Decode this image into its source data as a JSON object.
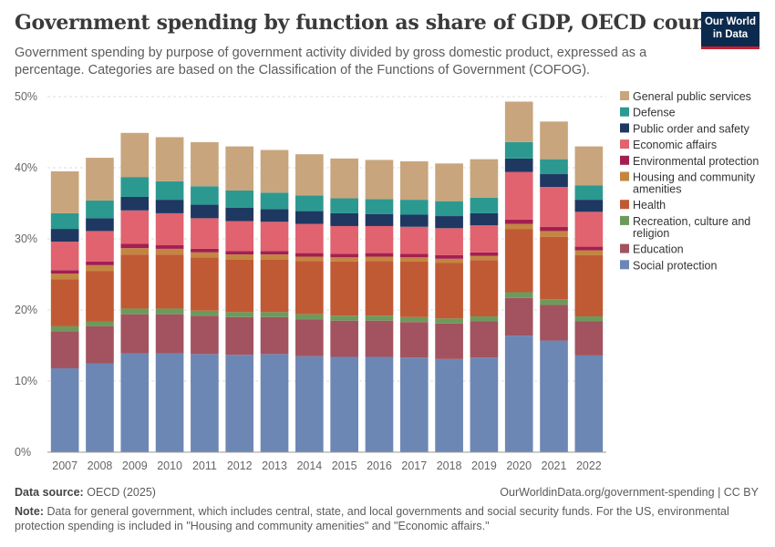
{
  "header": {
    "title": "Government spending by function as share of GDP, OECD countries",
    "subtitle": "Government spending by purpose of government activity divided by gross domestic product, expressed as a percentage. Categories are based on the Classification of the Functions of Government (COFOG).",
    "logo_line1": "Our World",
    "logo_line2": "in Data"
  },
  "footer": {
    "source_label": "Data source:",
    "source_value": "OECD (2025)",
    "license": "OurWorldinData.org/government-spending | CC BY",
    "note_label": "Note:",
    "note_text": "Data for general government, which includes central, state, and local governments and social security funds. For the US, environmental protection spending is included in \"Housing and community amenities\" and \"Economic affairs.\""
  },
  "colors": {
    "grid": "#dddddd",
    "axis": "#999999"
  },
  "chart_data": {
    "type": "bar",
    "stacked": true,
    "categories": [
      "2007",
      "2008",
      "2009",
      "2010",
      "2011",
      "2012",
      "2013",
      "2014",
      "2015",
      "2016",
      "2017",
      "2018",
      "2019",
      "2020",
      "2021",
      "2022"
    ],
    "ylim": [
      0,
      50
    ],
    "yticks": [
      0,
      10,
      20,
      30,
      40,
      50
    ],
    "ytick_labels": [
      "0%",
      "10%",
      "20%",
      "30%",
      "40%",
      "50%"
    ],
    "legend_position": "right",
    "series": [
      {
        "name": "Social protection",
        "color": "#6d87b4",
        "values": [
          11.8,
          12.5,
          13.9,
          13.9,
          13.8,
          13.7,
          13.8,
          13.5,
          13.4,
          13.4,
          13.3,
          13.1,
          13.3,
          16.4,
          15.7,
          13.6
        ]
      },
      {
        "name": "Education",
        "color": "#a2535f",
        "values": [
          5.2,
          5.2,
          5.5,
          5.5,
          5.4,
          5.3,
          5.2,
          5.2,
          5.1,
          5.1,
          5.0,
          5.0,
          5.1,
          5.3,
          5.0,
          4.8
        ]
      },
      {
        "name": "Recreation, culture and religion",
        "color": "#6d9a5b",
        "values": [
          0.7,
          0.7,
          0.8,
          0.8,
          0.7,
          0.7,
          0.7,
          0.7,
          0.7,
          0.7,
          0.7,
          0.7,
          0.7,
          0.8,
          0.8,
          0.7
        ]
      },
      {
        "name": "Health",
        "color": "#c05a35",
        "values": [
          6.6,
          7.1,
          7.6,
          7.6,
          7.5,
          7.4,
          7.4,
          7.5,
          7.6,
          7.7,
          7.8,
          7.8,
          7.9,
          8.9,
          8.8,
          8.6
        ]
      },
      {
        "name": "Housing and community amenities",
        "color": "#c38641",
        "values": [
          0.8,
          0.8,
          0.9,
          0.8,
          0.7,
          0.7,
          0.7,
          0.6,
          0.6,
          0.6,
          0.6,
          0.6,
          0.6,
          0.7,
          0.8,
          0.7
        ]
      },
      {
        "name": "Environmental protection",
        "color": "#a31f52",
        "values": [
          0.5,
          0.5,
          0.6,
          0.5,
          0.5,
          0.5,
          0.5,
          0.5,
          0.5,
          0.5,
          0.5,
          0.5,
          0.5,
          0.6,
          0.6,
          0.5
        ]
      },
      {
        "name": "Economic affairs",
        "color": "#e0636f",
        "values": [
          4.0,
          4.3,
          4.7,
          4.5,
          4.3,
          4.2,
          4.1,
          4.1,
          3.9,
          3.8,
          3.8,
          3.8,
          3.8,
          6.7,
          5.6,
          4.9
        ]
      },
      {
        "name": "Public order and safety",
        "color": "#1e3862",
        "values": [
          1.8,
          1.8,
          1.9,
          1.9,
          1.9,
          1.9,
          1.8,
          1.8,
          1.8,
          1.7,
          1.7,
          1.7,
          1.7,
          1.9,
          1.8,
          1.7
        ]
      },
      {
        "name": "Defense",
        "color": "#2c9990",
        "values": [
          2.2,
          2.5,
          2.8,
          2.6,
          2.6,
          2.4,
          2.3,
          2.2,
          2.1,
          2.1,
          2.1,
          2.1,
          2.2,
          2.3,
          2.1,
          2.0
        ]
      },
      {
        "name": "General public services",
        "color": "#c8a57d",
        "values": [
          5.9,
          6.0,
          6.2,
          6.2,
          6.2,
          6.2,
          6.0,
          5.8,
          5.6,
          5.5,
          5.4,
          5.3,
          5.4,
          5.7,
          5.3,
          5.5
        ]
      }
    ]
  }
}
